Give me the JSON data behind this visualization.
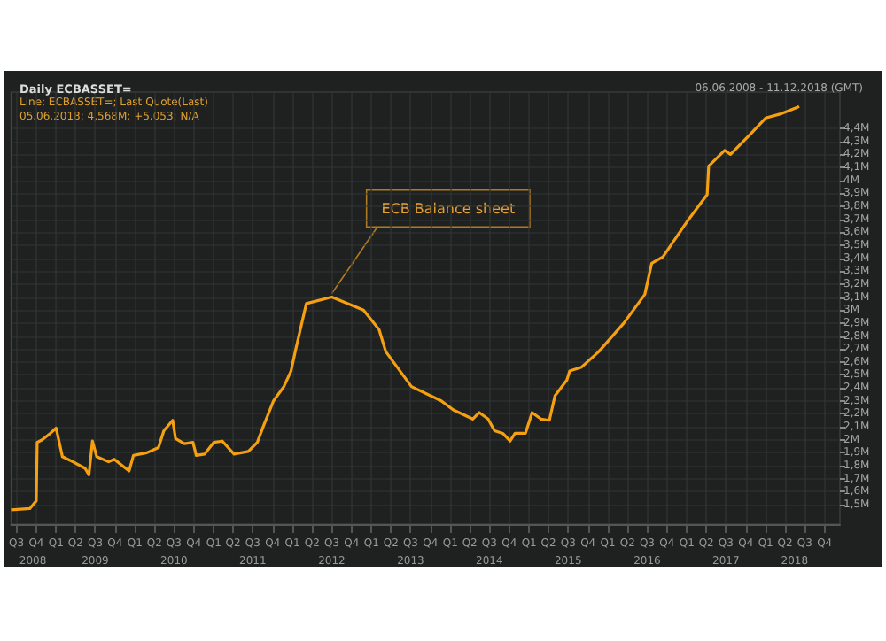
{
  "chart_data": {
    "type": "line",
    "title": "Daily ECBASSET=",
    "subtitle": "06.06.2008 - 11.12.2018 (GMT)",
    "annotations": [
      "Line; ECBASSET=; Last Quote(Last)",
      "05.06.2018; 4,568M; +5.053; N/A",
      {
        "text": "ECB Balance sheet",
        "x": "2012-07-01",
        "y": 3.1
      }
    ],
    "x": [
      "2008-06-06",
      "2008-09-01",
      "2008-10-01",
      "2008-10-05",
      "2008-10-28",
      "2008-12-05",
      "2009-01-01",
      "2009-01-30",
      "2009-03-20",
      "2009-05-15",
      "2009-06-02",
      "2009-06-18",
      "2009-07-08",
      "2009-09-01",
      "2009-09-27",
      "2009-12-05",
      "2009-12-25",
      "2010-02-25",
      "2010-04-20",
      "2010-05-15",
      "2010-06-25",
      "2010-07-08",
      "2010-08-18",
      "2010-09-27",
      "2010-10-12",
      "2010-11-20",
      "2011-01-01",
      "2011-02-10",
      "2011-04-05",
      "2011-06-10",
      "2011-07-22",
      "2011-08-18",
      "2011-10-05",
      "2011-11-22",
      "2011-12-25",
      "2012-01-15",
      "2012-03-05",
      "2012-07-01",
      "2012-11-25",
      "2013-02-05",
      "2013-03-08",
      "2013-07-05",
      "2013-11-20",
      "2014-01-15",
      "2014-04-15",
      "2014-05-15",
      "2014-06-25",
      "2014-07-25",
      "2014-09-01",
      "2014-10-05",
      "2014-10-28",
      "2014-12-15",
      "2015-01-15",
      "2015-02-25",
      "2015-04-05",
      "2015-05-01",
      "2015-06-25",
      "2015-07-08",
      "2015-09-01",
      "2015-11-20",
      "2016-03-15",
      "2016-06-20",
      "2016-07-22",
      "2016-09-12",
      "2017-01-01",
      "2017-04-05",
      "2017-04-12",
      "2017-06-25",
      "2017-07-22",
      "2017-10-25",
      "2018-01-01",
      "2018-03-08",
      "2018-05-25",
      "2018-06-05"
    ],
    "series": [
      {
        "color": "#f5a011",
        "values": [
          1.46,
          1.47,
          1.53,
          1.98,
          2.0,
          2.05,
          2.09,
          1.87,
          1.83,
          1.78,
          1.73,
          1.99,
          1.87,
          1.83,
          1.85,
          1.76,
          1.88,
          1.9,
          1.94,
          2.07,
          2.15,
          2.01,
          1.97,
          1.98,
          1.88,
          1.89,
          1.98,
          1.99,
          1.89,
          1.91,
          1.98,
          2.1,
          2.3,
          2.41,
          2.53,
          2.69,
          3.05,
          3.1,
          3.0,
          2.85,
          2.68,
          2.41,
          2.3,
          2.23,
          2.16,
          2.21,
          2.16,
          2.07,
          2.05,
          1.99,
          2.05,
          2.05,
          2.21,
          2.16,
          2.15,
          2.34,
          2.46,
          2.53,
          2.56,
          2.68,
          2.9,
          3.12,
          3.36,
          3.41,
          3.68,
          3.89,
          4.11,
          4.23,
          4.2,
          4.36,
          4.48,
          4.51,
          4.56,
          4.57
        ]
      }
    ],
    "xlim": [
      "2008-06-06",
      "2018-12-11"
    ],
    "xticks": [
      {
        "value": "2008-07-01",
        "label": "Q3"
      },
      {
        "value": "2008-10-01",
        "label": "Q4"
      },
      {
        "value": "2009-01-01",
        "label": "Q1"
      },
      {
        "value": "2009-04-01",
        "label": "Q2"
      },
      {
        "value": "2009-07-01",
        "label": "Q3"
      },
      {
        "value": "2009-10-01",
        "label": "Q4"
      },
      {
        "value": "2010-01-01",
        "label": "Q1"
      },
      {
        "value": "2010-04-01",
        "label": "Q2"
      },
      {
        "value": "2010-07-01",
        "label": "Q3"
      },
      {
        "value": "2010-10-01",
        "label": "Q4"
      },
      {
        "value": "2011-01-01",
        "label": "Q1"
      },
      {
        "value": "2011-04-01",
        "label": "Q2"
      },
      {
        "value": "2011-07-01",
        "label": "Q3"
      },
      {
        "value": "2011-10-01",
        "label": "Q4"
      },
      {
        "value": "2012-01-01",
        "label": "Q1"
      },
      {
        "value": "2012-04-01",
        "label": "Q2"
      },
      {
        "value": "2012-07-01",
        "label": "Q3"
      },
      {
        "value": "2012-10-01",
        "label": "Q4"
      },
      {
        "value": "2013-01-01",
        "label": "Q1"
      },
      {
        "value": "2013-04-01",
        "label": "Q2"
      },
      {
        "value": "2013-07-01",
        "label": "Q3"
      },
      {
        "value": "2013-10-01",
        "label": "Q4"
      },
      {
        "value": "2014-01-01",
        "label": "Q1"
      },
      {
        "value": "2014-04-01",
        "label": "Q2"
      },
      {
        "value": "2014-07-01",
        "label": "Q3"
      },
      {
        "value": "2014-10-01",
        "label": "Q4"
      },
      {
        "value": "2015-01-01",
        "label": "Q1"
      },
      {
        "value": "2015-04-01",
        "label": "Q2"
      },
      {
        "value": "2015-07-01",
        "label": "Q3"
      },
      {
        "value": "2015-10-01",
        "label": "Q4"
      },
      {
        "value": "2016-01-01",
        "label": "Q1"
      },
      {
        "value": "2016-04-01",
        "label": "Q2"
      },
      {
        "value": "2016-07-01",
        "label": "Q3"
      },
      {
        "value": "2016-10-01",
        "label": "Q4"
      },
      {
        "value": "2017-01-01",
        "label": "Q1"
      },
      {
        "value": "2017-04-01",
        "label": "Q2"
      },
      {
        "value": "2017-07-01",
        "label": "Q3"
      },
      {
        "value": "2017-10-01",
        "label": "Q4"
      },
      {
        "value": "2018-01-01",
        "label": "Q1"
      },
      {
        "value": "2018-04-01",
        "label": "Q2"
      },
      {
        "value": "2018-07-01",
        "label": "Q3"
      },
      {
        "value": "2018-10-01",
        "label": "Q4"
      }
    ],
    "x2lim": [
      "2008-06-06",
      "2018-12-11"
    ],
    "x2ticks": [
      {
        "value": "2008-09-15",
        "label": "2008"
      },
      {
        "value": "2009-07-01",
        "label": "2009"
      },
      {
        "value": "2010-07-01",
        "label": "2010"
      },
      {
        "value": "2011-07-01",
        "label": "2011"
      },
      {
        "value": "2012-07-01",
        "label": "2012"
      },
      {
        "value": "2013-07-01",
        "label": "2013"
      },
      {
        "value": "2014-07-01",
        "label": "2014"
      },
      {
        "value": "2015-07-01",
        "label": "2015"
      },
      {
        "value": "2016-07-01",
        "label": "2016"
      },
      {
        "value": "2017-07-01",
        "label": "2017"
      },
      {
        "value": "2018-05-15",
        "label": "2018"
      }
    ],
    "ylim": [
      1.35,
      4.68
    ],
    "yticks": [
      {
        "value": 1.5,
        "label": "1,5M"
      },
      {
        "value": 1.6,
        "label": "1,6M"
      },
      {
        "value": 1.7,
        "label": "1,7M"
      },
      {
        "value": 1.8,
        "label": "1,8M"
      },
      {
        "value": 1.9,
        "label": "1,9M"
      },
      {
        "value": 2,
        "label": "2M"
      },
      {
        "value": 2.1,
        "label": "2,1M"
      },
      {
        "value": 2.2,
        "label": "2,2M"
      },
      {
        "value": 2.3,
        "label": "2,3M"
      },
      {
        "value": 2.4,
        "label": "2,4M"
      },
      {
        "value": 2.5,
        "label": "2,5M"
      },
      {
        "value": 2.6,
        "label": "2,6M"
      },
      {
        "value": 2.7,
        "label": "2,7M"
      },
      {
        "value": 2.8,
        "label": "2,8M"
      },
      {
        "value": 2.9,
        "label": "2,9M"
      },
      {
        "value": 3,
        "label": "3M"
      },
      {
        "value": 3.1,
        "label": "3,1M"
      },
      {
        "value": 3.2,
        "label": "3,2M"
      },
      {
        "value": 3.3,
        "label": "3,3M"
      },
      {
        "value": 3.4,
        "label": "3,4M"
      },
      {
        "value": 3.5,
        "label": "3,5M"
      },
      {
        "value": 3.6,
        "label": "3,6M"
      },
      {
        "value": 3.7,
        "label": "3,7M"
      },
      {
        "value": 3.8,
        "label": "3,8M"
      },
      {
        "value": 3.9,
        "label": "3,9M"
      },
      {
        "value": 4,
        "label": "4M"
      },
      {
        "value": 4.1,
        "label": "4,1M"
      },
      {
        "value": 4.2,
        "label": "4,2M"
      },
      {
        "value": 4.3,
        "label": "4,3M"
      },
      {
        "value": 4.4,
        "label": "4,4M"
      }
    ],
    "grid": true,
    "marker": "none",
    "line_style": "solid"
  }
}
